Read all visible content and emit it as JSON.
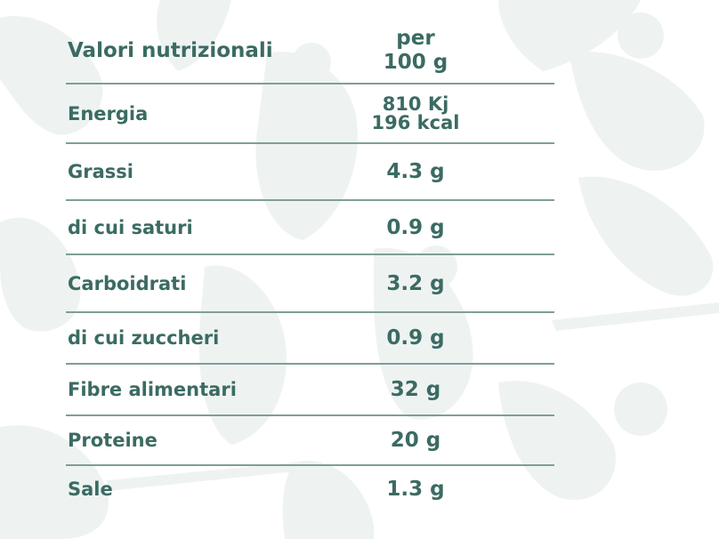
{
  "header": {
    "title": "Valori nutrizionali",
    "per_line1": "per",
    "per_line2": "100 g"
  },
  "rows": [
    {
      "label": "Energia",
      "value_line1": "810 Kj",
      "value_line2": "196 kcal"
    },
    {
      "label": "Grassi",
      "value": "4.3 g"
    },
    {
      "label": "di cui saturi",
      "value": "0.9 g"
    },
    {
      "label": "Carboidrati",
      "value": "3.2 g"
    },
    {
      "label": "di cui zuccheri",
      "value": "0.9 g"
    },
    {
      "label": "Fibre alimentari",
      "value": "32 g"
    },
    {
      "label": "Proteine",
      "value": "20 g"
    },
    {
      "label": "Sale",
      "value": "1.3 g"
    }
  ],
  "colors": {
    "text": "#3b6b63",
    "rule": "#7f9e98",
    "background_art": "#eef3f2"
  }
}
